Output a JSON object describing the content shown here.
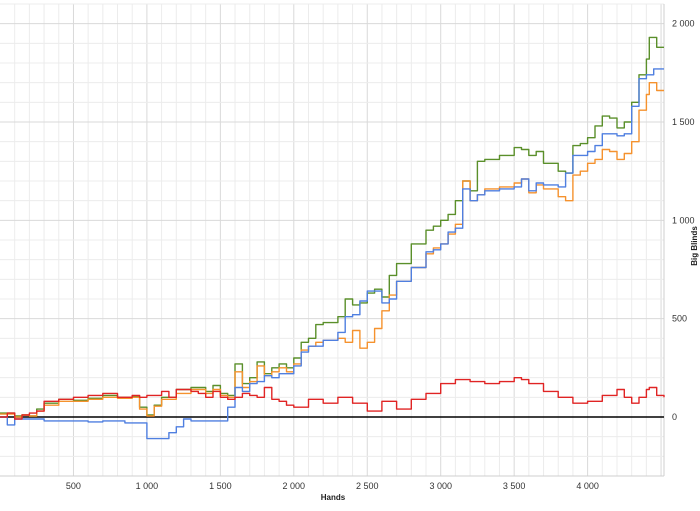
{
  "chart_data": {
    "type": "line",
    "title": "",
    "xlabel": "Hands",
    "ylabel": "Big Blinds",
    "xlim": [
      0,
      4520
    ],
    "ylim": [
      -300,
      2100
    ],
    "grid": true,
    "legend": "none",
    "zero_line": true,
    "x_ticks": [
      500,
      1000,
      1500,
      2000,
      2500,
      3000,
      3500,
      4000
    ],
    "x_tick_labels": [
      "500",
      "1 000",
      "1 500",
      "2 000",
      "2 500",
      "3 000",
      "3 500",
      "4 000"
    ],
    "y_ticks": [
      0,
      500,
      1000,
      1500,
      2000
    ],
    "y_tick_labels": [
      "0",
      "500",
      "1 000",
      "1 500",
      "2 000"
    ],
    "series": [
      {
        "color": "#5a8f2a",
        "points": [
          [
            0,
            20
          ],
          [
            100,
            5
          ],
          [
            150,
            10
          ],
          [
            200,
            5
          ],
          [
            250,
            40
          ],
          [
            300,
            70
          ],
          [
            400,
            90
          ],
          [
            500,
            85
          ],
          [
            600,
            95
          ],
          [
            700,
            110
          ],
          [
            800,
            100
          ],
          [
            900,
            105
          ],
          [
            950,
            50
          ],
          [
            1000,
            10
          ],
          [
            1050,
            60
          ],
          [
            1100,
            100
          ],
          [
            1200,
            140
          ],
          [
            1300,
            150
          ],
          [
            1400,
            130
          ],
          [
            1450,
            160
          ],
          [
            1500,
            120
          ],
          [
            1550,
            110
          ],
          [
            1600,
            270
          ],
          [
            1650,
            170
          ],
          [
            1700,
            200
          ],
          [
            1750,
            280
          ],
          [
            1800,
            220
          ],
          [
            1850,
            250
          ],
          [
            1900,
            270
          ],
          [
            1950,
            250
          ],
          [
            2000,
            300
          ],
          [
            2050,
            380
          ],
          [
            2100,
            400
          ],
          [
            2150,
            470
          ],
          [
            2200,
            480
          ],
          [
            2300,
            510
          ],
          [
            2350,
            600
          ],
          [
            2400,
            570
          ],
          [
            2450,
            580
          ],
          [
            2500,
            630
          ],
          [
            2550,
            650
          ],
          [
            2600,
            610
          ],
          [
            2650,
            720
          ],
          [
            2700,
            780
          ],
          [
            2800,
            880
          ],
          [
            2900,
            950
          ],
          [
            2950,
            970
          ],
          [
            3000,
            1000
          ],
          [
            3050,
            1030
          ],
          [
            3100,
            1100
          ],
          [
            3150,
            1200
          ],
          [
            3200,
            1150
          ],
          [
            3250,
            1300
          ],
          [
            3300,
            1310
          ],
          [
            3400,
            1330
          ],
          [
            3500,
            1370
          ],
          [
            3550,
            1360
          ],
          [
            3600,
            1330
          ],
          [
            3650,
            1350
          ],
          [
            3700,
            1290
          ],
          [
            3800,
            1250
          ],
          [
            3850,
            1240
          ],
          [
            3900,
            1380
          ],
          [
            3950,
            1390
          ],
          [
            4000,
            1420
          ],
          [
            4050,
            1480
          ],
          [
            4100,
            1530
          ],
          [
            4150,
            1520
          ],
          [
            4200,
            1470
          ],
          [
            4250,
            1500
          ],
          [
            4300,
            1600
          ],
          [
            4350,
            1740
          ],
          [
            4400,
            1820
          ],
          [
            4420,
            1930
          ],
          [
            4470,
            1880
          ],
          [
            4520,
            1880
          ]
        ]
      },
      {
        "color": "#f5922e",
        "points": [
          [
            0,
            15
          ],
          [
            100,
            0
          ],
          [
            150,
            10
          ],
          [
            200,
            5
          ],
          [
            250,
            30
          ],
          [
            300,
            60
          ],
          [
            400,
            80
          ],
          [
            500,
            80
          ],
          [
            600,
            90
          ],
          [
            700,
            100
          ],
          [
            800,
            95
          ],
          [
            900,
            100
          ],
          [
            950,
            40
          ],
          [
            1000,
            5
          ],
          [
            1050,
            55
          ],
          [
            1100,
            90
          ],
          [
            1200,
            120
          ],
          [
            1300,
            140
          ],
          [
            1400,
            120
          ],
          [
            1450,
            140
          ],
          [
            1500,
            110
          ],
          [
            1550,
            100
          ],
          [
            1600,
            230
          ],
          [
            1650,
            150
          ],
          [
            1700,
            180
          ],
          [
            1750,
            260
          ],
          [
            1800,
            210
          ],
          [
            1850,
            230
          ],
          [
            1900,
            250
          ],
          [
            1950,
            230
          ],
          [
            2000,
            270
          ],
          [
            2050,
            340
          ],
          [
            2100,
            360
          ],
          [
            2150,
            380
          ],
          [
            2200,
            390
          ],
          [
            2300,
            400
          ],
          [
            2350,
            380
          ],
          [
            2400,
            440
          ],
          [
            2450,
            350
          ],
          [
            2500,
            380
          ],
          [
            2550,
            450
          ],
          [
            2600,
            540
          ],
          [
            2650,
            620
          ],
          [
            2700,
            690
          ],
          [
            2800,
            760
          ],
          [
            2900,
            830
          ],
          [
            2950,
            860
          ],
          [
            3000,
            880
          ],
          [
            3050,
            930
          ],
          [
            3100,
            980
          ],
          [
            3150,
            1200
          ],
          [
            3200,
            1100
          ],
          [
            3250,
            1130
          ],
          [
            3300,
            1160
          ],
          [
            3400,
            1170
          ],
          [
            3500,
            1190
          ],
          [
            3550,
            1210
          ],
          [
            3600,
            1140
          ],
          [
            3650,
            1180
          ],
          [
            3700,
            1160
          ],
          [
            3800,
            1120
          ],
          [
            3850,
            1100
          ],
          [
            3900,
            1230
          ],
          [
            3950,
            1250
          ],
          [
            4000,
            1290
          ],
          [
            4050,
            1310
          ],
          [
            4100,
            1360
          ],
          [
            4150,
            1350
          ],
          [
            4200,
            1310
          ],
          [
            4250,
            1340
          ],
          [
            4300,
            1400
          ],
          [
            4350,
            1560
          ],
          [
            4400,
            1640
          ],
          [
            4420,
            1700
          ],
          [
            4470,
            1660
          ],
          [
            4520,
            1660
          ]
        ]
      },
      {
        "color": "#4f7fe0",
        "points": [
          [
            0,
            0
          ],
          [
            50,
            -40
          ],
          [
            100,
            -10
          ],
          [
            200,
            -10
          ],
          [
            300,
            -20
          ],
          [
            500,
            -20
          ],
          [
            600,
            -25
          ],
          [
            700,
            -20
          ],
          [
            850,
            -30
          ],
          [
            950,
            -30
          ],
          [
            1000,
            -110
          ],
          [
            1100,
            -110
          ],
          [
            1150,
            -80
          ],
          [
            1200,
            -50
          ],
          [
            1250,
            -10
          ],
          [
            1300,
            -20
          ],
          [
            1450,
            -20
          ],
          [
            1500,
            -20
          ],
          [
            1550,
            50
          ],
          [
            1600,
            150
          ],
          [
            1650,
            130
          ],
          [
            1700,
            170
          ],
          [
            1750,
            180
          ],
          [
            1800,
            210
          ],
          [
            1850,
            200
          ],
          [
            1900,
            220
          ],
          [
            1950,
            220
          ],
          [
            2000,
            260
          ],
          [
            2050,
            330
          ],
          [
            2100,
            360
          ],
          [
            2200,
            390
          ],
          [
            2300,
            430
          ],
          [
            2350,
            510
          ],
          [
            2400,
            520
          ],
          [
            2450,
            590
          ],
          [
            2500,
            640
          ],
          [
            2600,
            580
          ],
          [
            2650,
            600
          ],
          [
            2700,
            690
          ],
          [
            2800,
            760
          ],
          [
            2900,
            840
          ],
          [
            2950,
            850
          ],
          [
            3000,
            880
          ],
          [
            3050,
            940
          ],
          [
            3100,
            960
          ],
          [
            3150,
            1160
          ],
          [
            3200,
            1100
          ],
          [
            3250,
            1130
          ],
          [
            3300,
            1150
          ],
          [
            3400,
            1160
          ],
          [
            3500,
            1170
          ],
          [
            3550,
            1210
          ],
          [
            3600,
            1150
          ],
          [
            3650,
            1190
          ],
          [
            3700,
            1180
          ],
          [
            3800,
            1170
          ],
          [
            3850,
            1240
          ],
          [
            3900,
            1330
          ],
          [
            4000,
            1350
          ],
          [
            4050,
            1380
          ],
          [
            4100,
            1440
          ],
          [
            4200,
            1430
          ],
          [
            4250,
            1440
          ],
          [
            4300,
            1580
          ],
          [
            4350,
            1720
          ],
          [
            4400,
            1740
          ],
          [
            4450,
            1770
          ],
          [
            4520,
            1770
          ]
        ]
      },
      {
        "color": "#e02424",
        "points": [
          [
            0,
            0
          ],
          [
            50,
            20
          ],
          [
            100,
            -10
          ],
          [
            150,
            10
          ],
          [
            200,
            20
          ],
          [
            250,
            30
          ],
          [
            300,
            80
          ],
          [
            400,
            90
          ],
          [
            500,
            100
          ],
          [
            600,
            110
          ],
          [
            700,
            120
          ],
          [
            800,
            100
          ],
          [
            900,
            110
          ],
          [
            950,
            100
          ],
          [
            1000,
            110
          ],
          [
            1100,
            130
          ],
          [
            1150,
            100
          ],
          [
            1200,
            140
          ],
          [
            1300,
            130
          ],
          [
            1350,
            120
          ],
          [
            1400,
            100
          ],
          [
            1450,
            130
          ],
          [
            1500,
            100
          ],
          [
            1550,
            90
          ],
          [
            1600,
            100
          ],
          [
            1650,
            120
          ],
          [
            1700,
            110
          ],
          [
            1750,
            100
          ],
          [
            1800,
            150
          ],
          [
            1850,
            90
          ],
          [
            1900,
            80
          ],
          [
            1950,
            60
          ],
          [
            2000,
            50
          ],
          [
            2100,
            90
          ],
          [
            2200,
            70
          ],
          [
            2300,
            100
          ],
          [
            2400,
            70
          ],
          [
            2500,
            30
          ],
          [
            2600,
            80
          ],
          [
            2700,
            40
          ],
          [
            2800,
            90
          ],
          [
            2900,
            120
          ],
          [
            3000,
            170
          ],
          [
            3100,
            190
          ],
          [
            3200,
            180
          ],
          [
            3300,
            170
          ],
          [
            3400,
            180
          ],
          [
            3500,
            200
          ],
          [
            3550,
            190
          ],
          [
            3600,
            170
          ],
          [
            3700,
            130
          ],
          [
            3800,
            100
          ],
          [
            3900,
            70
          ],
          [
            4000,
            80
          ],
          [
            4100,
            110
          ],
          [
            4200,
            140
          ],
          [
            4250,
            100
          ],
          [
            4300,
            70
          ],
          [
            4350,
            100
          ],
          [
            4400,
            140
          ],
          [
            4420,
            150
          ],
          [
            4470,
            110
          ],
          [
            4520,
            100
          ]
        ]
      }
    ]
  }
}
